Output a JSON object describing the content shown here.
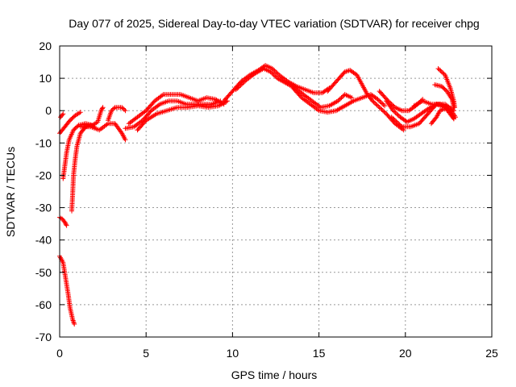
{
  "chart_data": {
    "type": "scatter",
    "title": "Day 077 of 2025, Sidereal Day-to-day VTEC variation (SDTVAR) for receiver chpg",
    "xlabel": "GPS time / hours",
    "ylabel": "SDTVAR / TECUs",
    "xlim": [
      0,
      25
    ],
    "ylim": [
      -70,
      20
    ],
    "xticks": [
      0,
      5,
      10,
      15,
      20,
      25
    ],
    "yticks": [
      20,
      10,
      0,
      -10,
      -20,
      -30,
      -40,
      -50,
      -60,
      -70
    ],
    "grid": true,
    "marker": "+",
    "color": "#ff0000",
    "series": [
      {
        "name": "s1",
        "points": [
          [
            0,
            -45
          ],
          [
            0.2,
            -47
          ],
          [
            0.35,
            -52
          ],
          [
            0.5,
            -57
          ],
          [
            0.6,
            -61
          ],
          [
            0.75,
            -64.5
          ],
          [
            0.85,
            -66
          ]
        ]
      },
      {
        "name": "s2",
        "points": [
          [
            0,
            -33
          ],
          [
            0.15,
            -33.5
          ],
          [
            0.3,
            -34.5
          ],
          [
            0.4,
            -35.5
          ]
        ]
      },
      {
        "name": "s3",
        "points": [
          [
            0.7,
            -31
          ],
          [
            0.75,
            -26
          ],
          [
            0.8,
            -20
          ],
          [
            0.9,
            -15
          ],
          [
            1.0,
            -11
          ],
          [
            1.2,
            -7
          ],
          [
            1.5,
            -5
          ],
          [
            1.8,
            -4.5
          ],
          [
            2.0,
            -5
          ]
        ]
      },
      {
        "name": "s4",
        "points": [
          [
            0.2,
            -21
          ],
          [
            0.3,
            -17
          ],
          [
            0.4,
            -13
          ],
          [
            0.55,
            -9
          ],
          [
            0.8,
            -6
          ],
          [
            1.1,
            -4.5
          ],
          [
            1.5,
            -4
          ],
          [
            1.9,
            -4.5
          ],
          [
            2.2,
            -3.5
          ],
          [
            2.4,
            0
          ],
          [
            2.5,
            1
          ]
        ]
      },
      {
        "name": "s5",
        "points": [
          [
            0,
            -7
          ],
          [
            0.3,
            -5
          ],
          [
            0.6,
            -3
          ],
          [
            0.9,
            -1.5
          ],
          [
            1.2,
            -0.5
          ]
        ]
      },
      {
        "name": "s6",
        "points": [
          [
            0.05,
            -2
          ],
          [
            0.2,
            -1
          ]
        ]
      },
      {
        "name": "s7",
        "points": [
          [
            1.2,
            -5
          ],
          [
            1.8,
            -5
          ],
          [
            2.3,
            -6
          ],
          [
            2.8,
            -4
          ],
          [
            3.2,
            -4
          ],
          [
            3.6,
            -7
          ],
          [
            3.8,
            -9
          ]
        ]
      },
      {
        "name": "s8",
        "points": [
          [
            2.8,
            -3
          ],
          [
            3.0,
            0
          ],
          [
            3.2,
            1
          ],
          [
            3.6,
            1
          ],
          [
            3.8,
            0
          ]
        ]
      },
      {
        "name": "s9",
        "points": [
          [
            3.8,
            -5.5
          ],
          [
            4.3,
            -5
          ],
          [
            4.8,
            -3
          ],
          [
            5.3,
            0
          ],
          [
            5.8,
            2
          ],
          [
            6.3,
            3
          ],
          [
            6.8,
            3
          ],
          [
            7.3,
            2
          ],
          [
            7.8,
            2
          ],
          [
            8.3,
            2
          ],
          [
            8.8,
            2
          ],
          [
            9.3,
            3
          ]
        ]
      },
      {
        "name": "s10",
        "points": [
          [
            4.0,
            -4
          ],
          [
            4.5,
            -2
          ],
          [
            5.0,
            0
          ],
          [
            5.5,
            3
          ],
          [
            6.0,
            5
          ],
          [
            6.5,
            5
          ],
          [
            7.0,
            5
          ],
          [
            7.5,
            4
          ],
          [
            8.0,
            3
          ],
          [
            8.5,
            4
          ],
          [
            9.0,
            3.5
          ],
          [
            9.5,
            2
          ]
        ]
      },
      {
        "name": "s11",
        "points": [
          [
            4.5,
            -6
          ],
          [
            5.0,
            -3
          ],
          [
            5.6,
            -1
          ],
          [
            6.2,
            0
          ],
          [
            6.8,
            1
          ],
          [
            7.4,
            1
          ],
          [
            8.0,
            1.5
          ],
          [
            8.6,
            1
          ],
          [
            9.2,
            1.5
          ],
          [
            9.7,
            3
          ]
        ]
      },
      {
        "name": "s12",
        "points": [
          [
            9.5,
            3
          ],
          [
            10.0,
            6
          ],
          [
            10.5,
            9
          ],
          [
            11.0,
            11
          ],
          [
            11.5,
            12.5
          ],
          [
            11.9,
            14
          ],
          [
            12.3,
            13
          ],
          [
            12.7,
            11
          ],
          [
            13.2,
            9
          ],
          [
            13.7,
            7.5
          ],
          [
            14.2,
            6.5
          ],
          [
            14.7,
            5.5
          ],
          [
            15.2,
            5.5
          ],
          [
            15.6,
            7
          ]
        ]
      },
      {
        "name": "s13",
        "points": [
          [
            10.2,
            6.5
          ],
          [
            10.8,
            9.5
          ],
          [
            11.3,
            11.5
          ],
          [
            11.8,
            13
          ],
          [
            12.2,
            12
          ],
          [
            12.6,
            10
          ],
          [
            13.1,
            8.5
          ],
          [
            13.6,
            7
          ],
          [
            14.1,
            5
          ],
          [
            14.6,
            3
          ],
          [
            15.1,
            1
          ],
          [
            15.6,
            1.5
          ],
          [
            16.1,
            3
          ],
          [
            16.5,
            5
          ],
          [
            16.9,
            4
          ]
        ]
      },
      {
        "name": "s14",
        "points": [
          [
            13.5,
            7
          ],
          [
            14.0,
            4
          ],
          [
            14.5,
            2
          ],
          [
            15.0,
            0
          ],
          [
            15.5,
            -0.5
          ],
          [
            16.0,
            0
          ],
          [
            16.5,
            1.5
          ],
          [
            17.0,
            3
          ],
          [
            17.5,
            4
          ],
          [
            18.0,
            5
          ],
          [
            18.4,
            3.5
          ],
          [
            18.8,
            1.5
          ]
        ]
      },
      {
        "name": "s15",
        "points": [
          [
            15.5,
            6
          ],
          [
            16.0,
            9
          ],
          [
            16.5,
            12
          ],
          [
            16.8,
            12.5
          ],
          [
            17.2,
            11
          ],
          [
            17.5,
            8
          ],
          [
            17.8,
            5
          ],
          [
            18.1,
            3
          ],
          [
            18.5,
            1
          ],
          [
            18.9,
            -1
          ],
          [
            19.4,
            -4
          ],
          [
            19.9,
            -6
          ]
        ]
      },
      {
        "name": "s16",
        "points": [
          [
            18.5,
            6
          ],
          [
            19.0,
            3
          ],
          [
            19.4,
            1
          ],
          [
            19.8,
            0
          ],
          [
            20.2,
            0
          ],
          [
            20.6,
            1.5
          ],
          [
            21.0,
            3.5
          ]
        ]
      },
      {
        "name": "s17",
        "points": [
          [
            18.9,
            3
          ],
          [
            19.3,
            0
          ],
          [
            19.7,
            -2
          ],
          [
            20.1,
            -3.5
          ],
          [
            20.5,
            -2.5
          ],
          [
            20.9,
            -1
          ],
          [
            21.3,
            0.5
          ],
          [
            21.8,
            2
          ],
          [
            22.3,
            1
          ],
          [
            22.8,
            -2.5
          ]
        ]
      },
      {
        "name": "s18",
        "points": [
          [
            19.2,
            -2
          ],
          [
            19.8,
            -5
          ],
          [
            20.3,
            -5
          ],
          [
            20.8,
            -4
          ],
          [
            21.3,
            -1
          ],
          [
            21.8,
            2
          ],
          [
            22.3,
            2
          ],
          [
            22.8,
            0
          ]
        ]
      },
      {
        "name": "s19",
        "points": [
          [
            20.5,
            1.5
          ],
          [
            21.0,
            3
          ],
          [
            21.5,
            2
          ],
          [
            22.0,
            2
          ],
          [
            22.4,
            1
          ],
          [
            22.8,
            -2.5
          ]
        ]
      },
      {
        "name": "s20",
        "points": [
          [
            21.5,
            -4
          ],
          [
            21.8,
            -2
          ],
          [
            22.0,
            0
          ],
          [
            22.2,
            0.5
          ],
          [
            22.6,
            0.5
          ],
          [
            22.9,
            -2
          ]
        ]
      },
      {
        "name": "s21",
        "points": [
          [
            21.7,
            8
          ],
          [
            22.1,
            7.5
          ],
          [
            22.4,
            6
          ],
          [
            22.7,
            3.5
          ],
          [
            22.8,
            1
          ]
        ]
      },
      {
        "name": "s22",
        "points": [
          [
            21.9,
            13
          ],
          [
            22.3,
            11
          ],
          [
            22.6,
            7
          ],
          [
            22.8,
            3
          ],
          [
            22.85,
            1
          ]
        ]
      }
    ]
  }
}
